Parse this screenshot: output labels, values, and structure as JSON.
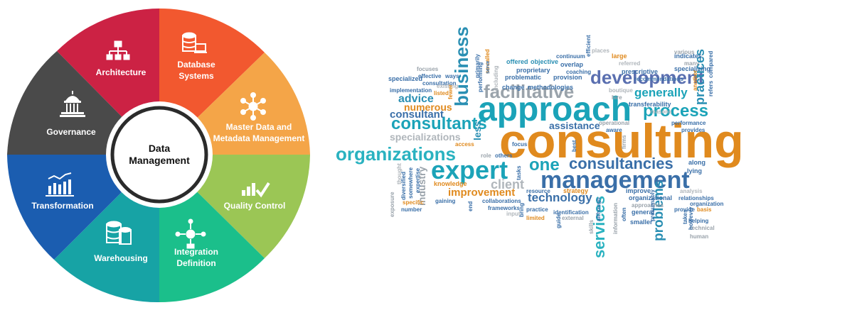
{
  "wheel": {
    "center_label": [
      "Data",
      "Management"
    ],
    "colors": {
      "architecture": "#cc2244",
      "database": "#f2582f",
      "master": "#f4a548",
      "quality": "#9bc655",
      "integration": "#1bbf8b",
      "warehousing": "#17a3a5",
      "transformation": "#1b5db0",
      "governance": "#4a4a4a",
      "center_ring": "#2b2b2b"
    },
    "segments": [
      {
        "id": "architecture",
        "label": [
          "Architecture"
        ],
        "icon": "hierarchy-icon"
      },
      {
        "id": "database",
        "label": [
          "Database",
          "Systems"
        ],
        "icon": "database-computer-icon"
      },
      {
        "id": "master",
        "label": [
          "Master Data and",
          "Metadata Management"
        ],
        "icon": "network-nodes-icon"
      },
      {
        "id": "quality",
        "label": [
          "Quality Control"
        ],
        "icon": "bar-chart-check-icon"
      },
      {
        "id": "integration",
        "label": [
          "Integration",
          "Definition"
        ],
        "icon": "integration-hub-icon"
      },
      {
        "id": "warehousing",
        "label": [
          "Warehousing"
        ],
        "icon": "database-stack-icon"
      },
      {
        "id": "transformation",
        "label": [
          "Transformation"
        ],
        "icon": "trend-bars-icon"
      },
      {
        "id": "governance",
        "label": [
          "Governance"
        ],
        "icon": "capitol-building-icon"
      }
    ]
  },
  "word_cloud": {
    "words": [
      {
        "t": "consulting",
        "c": "#e08a1e"
      },
      {
        "t": "approach",
        "c": "#1ba3b8"
      },
      {
        "t": "management",
        "c": "#3a6fa8"
      },
      {
        "t": "expert",
        "c": "#1ba3b8"
      },
      {
        "t": "organizations",
        "c": "#2ab2c0"
      },
      {
        "t": "facilitative",
        "c": "#9aa3ab"
      },
      {
        "t": "development",
        "c": "#5a6fb0"
      },
      {
        "t": "consultancies",
        "c": "#3a6fa8"
      },
      {
        "t": "business",
        "c": "#2a8fb3"
      },
      {
        "t": "consultants",
        "c": "#1ba3b8"
      },
      {
        "t": "process",
        "c": "#1ba3b8"
      },
      {
        "t": "one",
        "c": "#1ba3b8"
      },
      {
        "t": "services",
        "c": "#2ab2c0"
      },
      {
        "t": "problems",
        "c": "#2a8fb3"
      },
      {
        "t": "practices",
        "c": "#2a8fb3"
      },
      {
        "t": "generally",
        "c": "#1ba3b8"
      },
      {
        "t": "technology",
        "c": "#3a6fa8"
      },
      {
        "t": "improvement",
        "c": "#e08a1e"
      },
      {
        "t": "consultant",
        "c": "#3a6fa8"
      },
      {
        "t": "specializations",
        "c": "#b0b6bb"
      },
      {
        "t": "advice",
        "c": "#2a8fb3"
      },
      {
        "t": "numerous",
        "c": "#e08a1e"
      },
      {
        "t": "assistance",
        "c": "#3a6fa8"
      },
      {
        "t": "client",
        "c": "#b0b6bb"
      },
      {
        "t": "industry",
        "c": "#9aa3ab"
      },
      {
        "t": "less",
        "c": "#2a8fb3"
      },
      {
        "t": "knowledge",
        "c": "#e08a1e"
      },
      {
        "t": "specialized",
        "c": "#3a6fa8"
      },
      {
        "t": "consultation",
        "c": "#3a6fa8"
      },
      {
        "t": "implementation",
        "c": "#3a6fa8"
      },
      {
        "t": "focuses",
        "c": "#9aa3ab"
      },
      {
        "t": "effective",
        "c": "#3a6fa8"
      },
      {
        "t": "ways",
        "c": "#3a6fa8"
      },
      {
        "t": "listed",
        "c": "#e08a1e"
      },
      {
        "t": "existing",
        "c": "#b0b6bb"
      },
      {
        "t": "offered",
        "c": "#2a8fb3"
      },
      {
        "t": "objective",
        "c": "#2a8fb3"
      },
      {
        "t": "proprietary",
        "c": "#3a6fa8"
      },
      {
        "t": "problematic",
        "c": "#3a6fa8"
      },
      {
        "t": "change",
        "c": "#3a6fa8"
      },
      {
        "t": "methodologies",
        "c": "#3a6fa8"
      },
      {
        "t": "continuum",
        "c": "#3a6fa8"
      },
      {
        "t": "overlap",
        "c": "#3a6fa8"
      },
      {
        "t": "coaching",
        "c": "#3a6fa8"
      },
      {
        "t": "provision",
        "c": "#3a6fa8"
      },
      {
        "t": "large",
        "c": "#e08a1e"
      },
      {
        "t": "referred",
        "c": "#b0b6bb"
      },
      {
        "t": "prescriptive",
        "c": "#3a6fa8"
      },
      {
        "t": "recommendations",
        "c": "#3a6fa8"
      },
      {
        "t": "specializing",
        "c": "#3a6fa8"
      },
      {
        "t": "indicates",
        "c": "#3a6fa8"
      },
      {
        "t": "various",
        "c": "#9aa3ab"
      },
      {
        "t": "many",
        "c": "#9aa3ab"
      },
      {
        "t": "boutique",
        "c": "#b0b6bb"
      },
      {
        "t": "hire",
        "c": "#9aa3ab"
      },
      {
        "t": "transferability",
        "c": "#3a6fa8"
      },
      {
        "t": "reasons",
        "c": "#b0b6bb"
      },
      {
        "t": "operational",
        "c": "#9aa3ab"
      },
      {
        "t": "aware",
        "c": "#3a6fa8"
      },
      {
        "t": "performance",
        "c": "#3a6fa8"
      },
      {
        "t": "provides",
        "c": "#3a6fa8"
      },
      {
        "t": "firms",
        "c": "#9aa3ab"
      },
      {
        "t": "along",
        "c": "#3a6fa8"
      },
      {
        "t": "lying",
        "c": "#3a6fa8"
      },
      {
        "t": "improve",
        "c": "#3a6fa8"
      },
      {
        "t": "organizational",
        "c": "#3a6fa8"
      },
      {
        "t": "approaches",
        "c": "#9aa3ab"
      },
      {
        "t": "general",
        "c": "#3a6fa8"
      },
      {
        "t": "smaller",
        "c": "#3a6fa8"
      },
      {
        "t": "relationships",
        "c": "#3a6fa8"
      },
      {
        "t": "organization",
        "c": "#3a6fa8"
      },
      {
        "t": "provide",
        "c": "#3a6fa8"
      },
      {
        "t": "basis",
        "c": "#e08a1e"
      },
      {
        "t": "helping",
        "c": "#3a6fa8"
      },
      {
        "t": "technical",
        "c": "#9aa3ab"
      },
      {
        "t": "human",
        "c": "#9aa3ab"
      },
      {
        "t": "analysis",
        "c": "#b0b6bb"
      },
      {
        "t": "resource",
        "c": "#3a6fa8"
      },
      {
        "t": "strategy",
        "c": "#e08a1e"
      },
      {
        "t": "practice",
        "c": "#3a6fa8"
      },
      {
        "t": "identification",
        "c": "#3a6fa8"
      },
      {
        "t": "limited",
        "c": "#e08a1e"
      },
      {
        "t": "external",
        "c": "#9aa3ab"
      },
      {
        "t": "collaborations",
        "c": "#3a6fa8"
      },
      {
        "t": "frameworks",
        "c": "#3a6fa8"
      },
      {
        "t": "gaining",
        "c": "#3a6fa8"
      },
      {
        "t": "input",
        "c": "#b0b6bb"
      },
      {
        "t": "specific",
        "c": "#e08a1e"
      },
      {
        "t": "number",
        "c": "#3a6fa8"
      },
      {
        "t": "exposure",
        "c": "#9aa3ab"
      },
      {
        "t": "diversified",
        "c": "#3a6fa8"
      },
      {
        "t": "somewhere",
        "c": "#3a6fa8"
      },
      {
        "t": "expertise",
        "c": "#3a6fa8"
      },
      {
        "t": "thought",
        "c": "#b0b6bb"
      },
      {
        "t": "access",
        "c": "#e08a1e"
      },
      {
        "t": "role",
        "c": "#9aa3ab"
      },
      {
        "t": "others",
        "c": "#3a6fa8"
      },
      {
        "t": "focus",
        "c": "#3a6fa8"
      },
      {
        "t": "tasks",
        "c": "#3a6fa8"
      },
      {
        "t": "end",
        "c": "#3a6fa8"
      },
      {
        "t": "bring",
        "c": "#3a6fa8"
      },
      {
        "t": "guide",
        "c": "#3a6fa8"
      },
      {
        "t": "although",
        "c": "#3a6fa8"
      },
      {
        "t": "often",
        "c": "#3a6fa8"
      },
      {
        "t": "skills",
        "c": "#9aa3ab"
      },
      {
        "t": "best",
        "c": "#3a6fa8"
      },
      {
        "t": "information",
        "c": "#9aa3ab"
      },
      {
        "t": "presumably",
        "c": "#3a6fa8"
      },
      {
        "t": "however",
        "c": "#3a6fa8"
      },
      {
        "t": "takes",
        "c": "#3a6fa8"
      },
      {
        "t": "primarily",
        "c": "#3a6fa8"
      },
      {
        "t": "so-called",
        "c": "#e08a1e"
      },
      {
        "t": "including",
        "c": "#b0b6bb"
      },
      {
        "t": "performing",
        "c": "#3a6fa8"
      },
      {
        "t": "serve",
        "c": "#3a6fa8"
      },
      {
        "t": "fewer",
        "c": "#e08a1e"
      },
      {
        "t": "efficient",
        "c": "#3a6fa8"
      },
      {
        "t": "places",
        "c": "#b0b6bb"
      },
      {
        "t": "compared",
        "c": "#3a6fa8"
      },
      {
        "t": "refers",
        "c": "#3a6fa8"
      },
      {
        "t": "another",
        "c": "#e08a1e"
      }
    ]
  }
}
